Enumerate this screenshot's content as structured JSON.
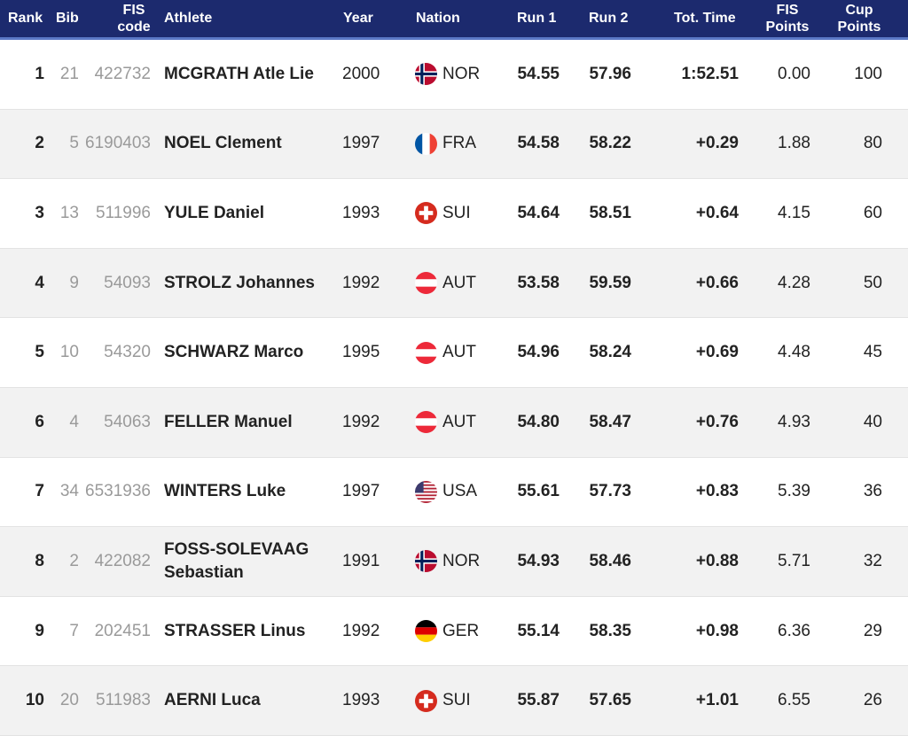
{
  "header": {
    "rank": "Rank",
    "bib": "Bib",
    "fis_code_line1": "FIS",
    "fis_code_line2": "code",
    "athlete": "Athlete",
    "year": "Year",
    "nation": "Nation",
    "run1": "Run 1",
    "run2": "Run 2",
    "tot_time": "Tot. Time",
    "fis_points_line1": "FIS",
    "fis_points_line2": "Points",
    "cup_points_line1": "Cup",
    "cup_points_line2": "Points"
  },
  "colors": {
    "header_bg": "#1c2a6e",
    "header_border": "#5b78c6",
    "row_alt": "#f2f2f2",
    "muted": "#9a9a9a"
  },
  "rows": [
    {
      "rank": "1",
      "bib": "21",
      "code": "422732",
      "athlete": "MCGRATH Atle Lie",
      "year": "2000",
      "flag_icon": "norway-flag-icon",
      "nation": "NOR",
      "run1": "54.55",
      "run2": "57.96",
      "tot": "1:52.51",
      "fis": "0.00",
      "cup": "100"
    },
    {
      "rank": "2",
      "bib": "5",
      "code": "6190403",
      "athlete": "NOEL Clement",
      "year": "1997",
      "flag_icon": "france-flag-icon",
      "nation": "FRA",
      "run1": "54.58",
      "run2": "58.22",
      "tot": "+0.29",
      "fis": "1.88",
      "cup": "80"
    },
    {
      "rank": "3",
      "bib": "13",
      "code": "511996",
      "athlete": "YULE Daniel",
      "year": "1993",
      "flag_icon": "switzerland-flag-icon",
      "nation": "SUI",
      "run1": "54.64",
      "run2": "58.51",
      "tot": "+0.64",
      "fis": "4.15",
      "cup": "60"
    },
    {
      "rank": "4",
      "bib": "9",
      "code": "54093",
      "athlete": "STROLZ Johannes",
      "year": "1992",
      "flag_icon": "austria-flag-icon",
      "nation": "AUT",
      "run1": "53.58",
      "run2": "59.59",
      "tot": "+0.66",
      "fis": "4.28",
      "cup": "50"
    },
    {
      "rank": "5",
      "bib": "10",
      "code": "54320",
      "athlete": "SCHWARZ Marco",
      "year": "1995",
      "flag_icon": "austria-flag-icon",
      "nation": "AUT",
      "run1": "54.96",
      "run2": "58.24",
      "tot": "+0.69",
      "fis": "4.48",
      "cup": "45"
    },
    {
      "rank": "6",
      "bib": "4",
      "code": "54063",
      "athlete": "FELLER Manuel",
      "year": "1992",
      "flag_icon": "austria-flag-icon",
      "nation": "AUT",
      "run1": "54.80",
      "run2": "58.47",
      "tot": "+0.76",
      "fis": "4.93",
      "cup": "40"
    },
    {
      "rank": "7",
      "bib": "34",
      "code": "6531936",
      "athlete": "WINTERS Luke",
      "year": "1997",
      "flag_icon": "usa-flag-icon",
      "nation": "USA",
      "run1": "55.61",
      "run2": "57.73",
      "tot": "+0.83",
      "fis": "5.39",
      "cup": "36"
    },
    {
      "rank": "8",
      "bib": "2",
      "code": "422082",
      "athlete": "FOSS-SOLEVAAG Sebastian",
      "year": "1991",
      "flag_icon": "norway-flag-icon",
      "nation": "NOR",
      "run1": "54.93",
      "run2": "58.46",
      "tot": "+0.88",
      "fis": "5.71",
      "cup": "32"
    },
    {
      "rank": "9",
      "bib": "7",
      "code": "202451",
      "athlete": "STRASSER Linus",
      "year": "1992",
      "flag_icon": "germany-flag-icon",
      "nation": "GER",
      "run1": "55.14",
      "run2": "58.35",
      "tot": "+0.98",
      "fis": "6.36",
      "cup": "29"
    },
    {
      "rank": "10",
      "bib": "20",
      "code": "511983",
      "athlete": "AERNI Luca",
      "year": "1993",
      "flag_icon": "switzerland-flag-icon",
      "nation": "SUI",
      "run1": "55.87",
      "run2": "57.65",
      "tot": "+1.01",
      "fis": "6.55",
      "cup": "26"
    }
  ]
}
